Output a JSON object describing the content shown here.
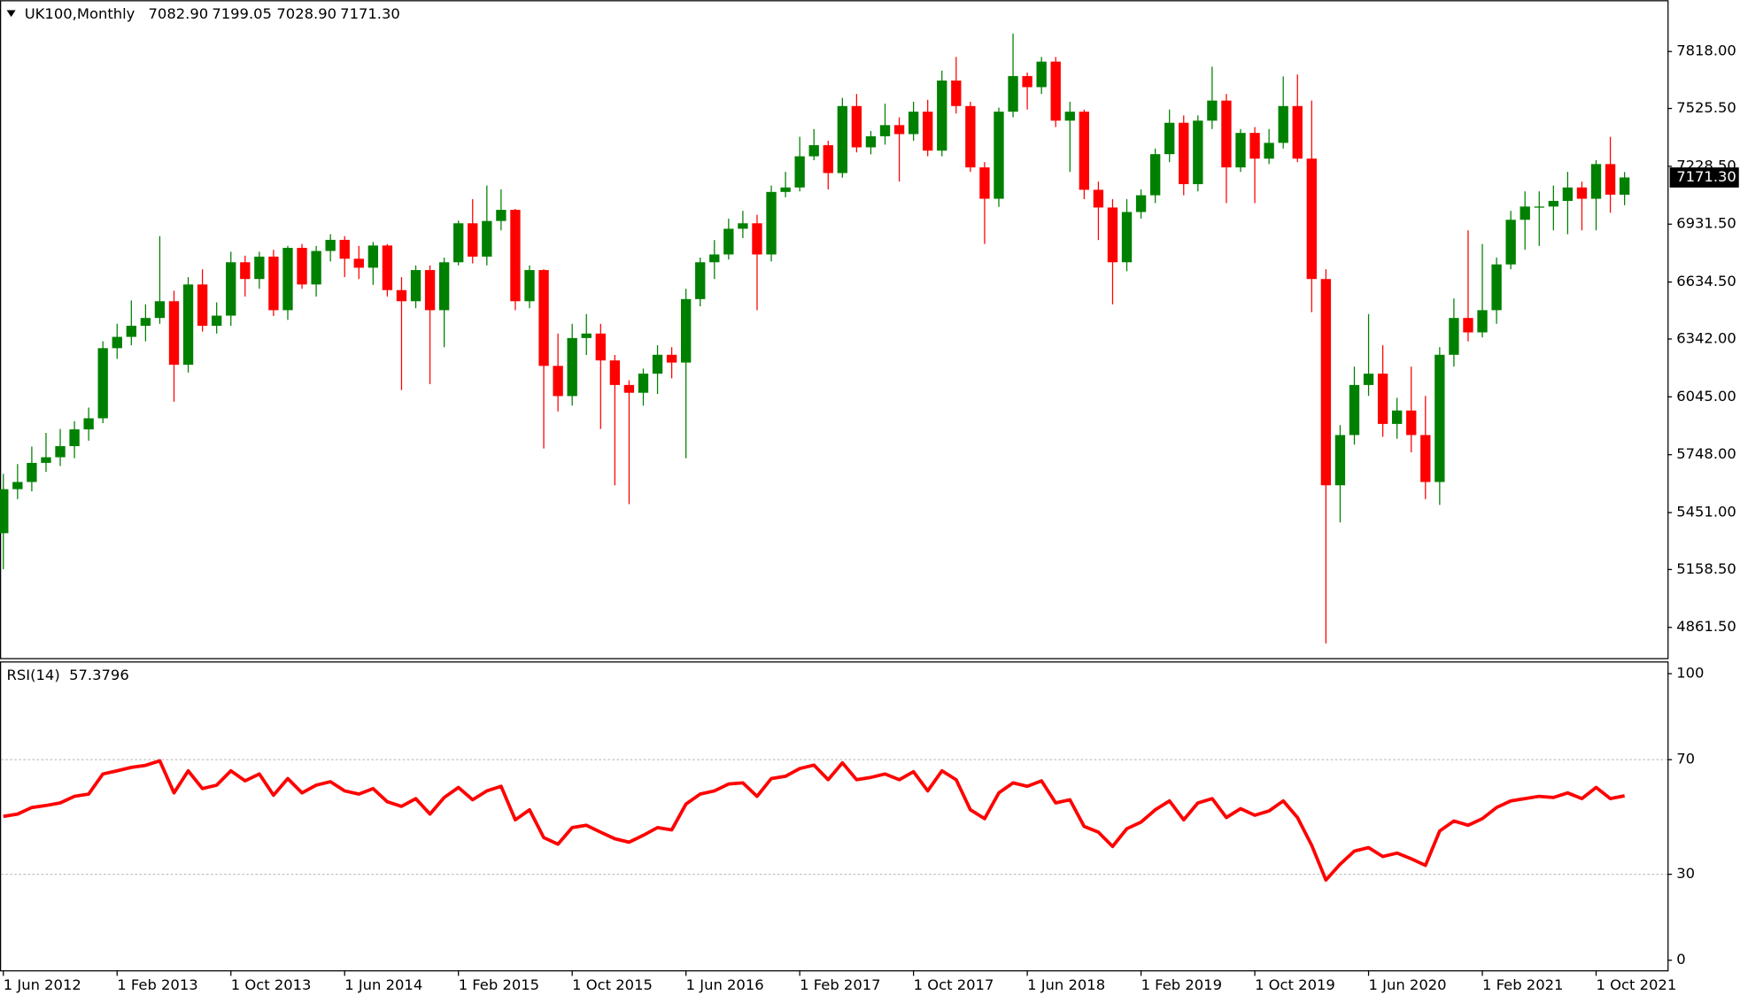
{
  "chart_data": [
    {
      "type": "candlestick",
      "title": "UK100,Monthly",
      "ohlc_labels": [
        "7082.90",
        "7199.05",
        "7028.90",
        "7171.30"
      ],
      "up_color": "#008000",
      "down_color": "#ff0000",
      "ylim": [
        4704,
        8070
      ],
      "yticks": [
        {
          "value": 7818,
          "label": "7818.00"
        },
        {
          "value": 7525.5,
          "label": "7525.50"
        },
        {
          "value": 7228.5,
          "label": "7228.50"
        },
        {
          "value": 6931.5,
          "label": "6931.50"
        },
        {
          "value": 6634.5,
          "label": "6634.50"
        },
        {
          "value": 6342,
          "label": "6342.00"
        },
        {
          "value": 6045,
          "label": "6045.00"
        },
        {
          "value": 5748,
          "label": "5748.00"
        },
        {
          "value": 5451,
          "label": "5451.00"
        },
        {
          "value": 5158.5,
          "label": "5158.50"
        },
        {
          "value": 4861.5,
          "label": "4861.50"
        }
      ],
      "categories": [
        "1 Jun 2012",
        null,
        null,
        null,
        null,
        null,
        null,
        null,
        "1 Feb 2013",
        null,
        null,
        null,
        null,
        null,
        null,
        null,
        "1 Oct 2013",
        null,
        null,
        null,
        null,
        null,
        null,
        null,
        "1 Jun 2014",
        null,
        null,
        null,
        null,
        null,
        null,
        null,
        "1 Feb 2015",
        null,
        null,
        null,
        null,
        null,
        null,
        null,
        "1 Oct 2015",
        null,
        null,
        null,
        null,
        null,
        null,
        null,
        "1 Jun 2016",
        null,
        null,
        null,
        null,
        null,
        null,
        null,
        "1 Feb 2017",
        null,
        null,
        null,
        null,
        null,
        null,
        null,
        "1 Oct 2017",
        null,
        null,
        null,
        null,
        null,
        null,
        null,
        "1 Jun 2018",
        null,
        null,
        null,
        null,
        null,
        null,
        null,
        "1 Feb 2019",
        null,
        null,
        null,
        null,
        null,
        null,
        null,
        "1 Oct 2019",
        null,
        null,
        null,
        null,
        null,
        null,
        null,
        "1 Jun 2020",
        null,
        null,
        null,
        null,
        null,
        null,
        null,
        "1 Feb 2021",
        null,
        null,
        null,
        null,
        null,
        null,
        null,
        "1 Oct 2021",
        null,
        null
      ],
      "open": [
        5345,
        5571,
        5608,
        5706,
        5735,
        5792,
        5878,
        5935,
        6295,
        6353,
        6410,
        6450,
        6536,
        6210,
        6622,
        6410,
        6462,
        6736,
        6650,
        6765,
        6490,
        6810,
        6622,
        6794,
        6851,
        6754,
        6708,
        6822,
        6593,
        6536,
        6696,
        6490,
        6736,
        6936,
        6765,
        6948,
        7005,
        6536,
        6696,
        6204,
        6049,
        6347,
        6370,
        6232,
        6106,
        6066,
        6164,
        6261,
        6221,
        6547,
        6736,
        6776,
        6908,
        6936,
        6776,
        7097,
        7120,
        7280,
        7337,
        7194,
        7538,
        7326,
        7383,
        7440,
        7394,
        7509,
        7309,
        7669,
        7538,
        7223,
        7062,
        7509,
        7692,
        7635,
        7766,
        7463,
        7509,
        7108,
        7017,
        6736,
        6994,
        7080,
        7291,
        7452,
        7137,
        7463,
        7566,
        7223,
        7400,
        7268,
        7349,
        7538,
        7268,
        6650,
        5591,
        5849,
        6106,
        6164,
        5906,
        5975,
        5849,
        5608,
        6261,
        6450,
        6376,
        6490,
        6725,
        6954,
        7022,
        7022,
        7051,
        7120,
        7062,
        7240,
        7082.9
      ],
      "high": [
        5650,
        5700,
        5790,
        5860,
        5880,
        5920,
        5990,
        6330,
        6420,
        6540,
        6520,
        6870,
        6590,
        6660,
        6700,
        6530,
        6790,
        6770,
        6790,
        6800,
        6820,
        6830,
        6820,
        6880,
        6870,
        6820,
        6840,
        6830,
        6660,
        6720,
        6720,
        6760,
        6950,
        7060,
        7130,
        7110,
        7010,
        6720,
        6700,
        6370,
        6420,
        6470,
        6420,
        6260,
        6130,
        6190,
        6310,
        6300,
        6600,
        6760,
        6850,
        6960,
        7000,
        6980,
        7130,
        7200,
        7380,
        7420,
        7360,
        7580,
        7600,
        7410,
        7550,
        7480,
        7560,
        7570,
        7720,
        7790,
        7560,
        7250,
        7530,
        7910,
        7710,
        7790,
        7790,
        7560,
        7520,
        7150,
        7060,
        7060,
        7110,
        7320,
        7520,
        7490,
        7490,
        7740,
        7600,
        7420,
        7430,
        7420,
        7690,
        7700,
        7566,
        6700,
        5900,
        6200,
        6470,
        6310,
        6040,
        6200,
        6050,
        6300,
        6550,
        6900,
        6830,
        6760,
        7000,
        7100,
        7100,
        7130,
        7200,
        7150,
        7260,
        7380,
        7199.05
      ],
      "low": [
        5160,
        5520,
        5560,
        5660,
        5690,
        5730,
        5820,
        5910,
        6240,
        6310,
        6330,
        6420,
        6020,
        6170,
        6380,
        6370,
        6410,
        6560,
        6600,
        6460,
        6440,
        6600,
        6560,
        6740,
        6660,
        6650,
        6620,
        6560,
        6080,
        6500,
        6110,
        6300,
        6720,
        6730,
        6720,
        6900,
        6490,
        6500,
        5780,
        5970,
        6000,
        6260,
        5880,
        5591,
        5494,
        6000,
        6060,
        6140,
        5730,
        6510,
        6650,
        6750,
        6860,
        6490,
        6740,
        7070,
        7100,
        7260,
        7110,
        7170,
        7300,
        7290,
        7340,
        7150,
        7360,
        7280,
        7280,
        7500,
        7200,
        6830,
        7020,
        7480,
        7520,
        7600,
        7430,
        7200,
        7060,
        6850,
        6520,
        6690,
        6960,
        7040,
        7250,
        7080,
        7100,
        7420,
        7040,
        7200,
        7040,
        7240,
        7320,
        7250,
        6480,
        4779,
        5400,
        5800,
        6050,
        5840,
        5830,
        5760,
        5520,
        5490,
        6200,
        6330,
        6350,
        6420,
        6700,
        6800,
        6820,
        6900,
        6880,
        6900,
        6900,
        6990,
        7028.9
      ],
      "close": [
        5571,
        5608,
        5706,
        5735,
        5792,
        5878,
        5935,
        6295,
        6353,
        6410,
        6450,
        6536,
        6210,
        6622,
        6410,
        6462,
        6736,
        6650,
        6765,
        6490,
        6810,
        6622,
        6794,
        6851,
        6754,
        6708,
        6822,
        6593,
        6536,
        6696,
        6490,
        6736,
        6936,
        6765,
        6948,
        7005,
        6536,
        6696,
        6204,
        6049,
        6347,
        6370,
        6232,
        6106,
        6066,
        6164,
        6261,
        6221,
        6547,
        6736,
        6776,
        6908,
        6936,
        6776,
        7097,
        7120,
        7280,
        7337,
        7194,
        7538,
        7326,
        7383,
        7440,
        7394,
        7509,
        7309,
        7669,
        7538,
        7223,
        7062,
        7509,
        7692,
        7635,
        7766,
        7463,
        7509,
        7108,
        7017,
        6736,
        6994,
        7080,
        7291,
        7452,
        7137,
        7463,
        7566,
        7223,
        7400,
        7268,
        7349,
        7538,
        7268,
        6650,
        5591,
        5849,
        6106,
        6164,
        5906,
        5975,
        5849,
        5608,
        6261,
        6450,
        6376,
        6490,
        6725,
        6954,
        7022,
        7022,
        7051,
        7120,
        7062,
        7240,
        7083,
        7171.3
      ]
    },
    {
      "type": "line",
      "title": "RSI(14)",
      "color": "#ff0000",
      "ylim": [
        0,
        100
      ],
      "yticks": [
        0,
        30,
        70,
        100
      ],
      "values": [
        50.2,
        51,
        53.3,
        54,
        54.9,
        57.2,
        58,
        65,
        66.1,
        67.3,
        68,
        69.6,
        58.4,
        66.1,
        59.9,
        61.1,
        66.1,
        62.6,
        65,
        57.6,
        63.4,
        58.4,
        61.1,
        62.3,
        59.1,
        58,
        59.9,
        55.3,
        53.7,
        56.4,
        51,
        56.8,
        60.3,
        56,
        59.1,
        60.7,
        49,
        52.5,
        42.8,
        40.5,
        46.3,
        47.1,
        44.7,
        42.4,
        41.2,
        43.6,
        46.3,
        45.5,
        54.5,
        58,
        59.1,
        61.5,
        61.9,
        57.2,
        63.4,
        64.2,
        66.9,
        68.1,
        63,
        68.9,
        63,
        63.8,
        65,
        63,
        65.8,
        59.1,
        66.1,
        63,
        52.5,
        49.4,
        58.4,
        61.9,
        60.7,
        62.6,
        54.9,
        56,
        46.7,
        44.7,
        39.7,
        45.9,
        48.2,
        52.5,
        55.6,
        49,
        54.9,
        56.4,
        49.8,
        52.9,
        50.6,
        52.1,
        55.6,
        49.8,
        40.1,
        28,
        33.5,
        38.1,
        39.3,
        36.2,
        37.4,
        35.4,
        33.1,
        45.1,
        48.6,
        47.1,
        49.4,
        53.3,
        55.6,
        56.4,
        57.2,
        56.8,
        58.4,
        56.4,
        60.3,
        56.4,
        57.3796
      ]
    }
  ]
}
